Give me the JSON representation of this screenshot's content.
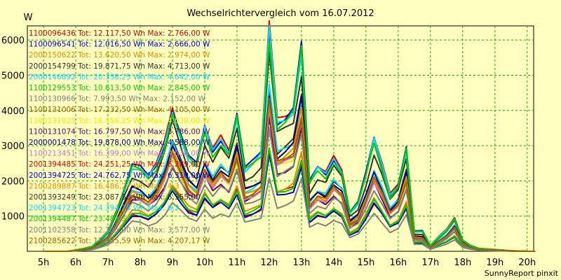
{
  "chart_data": {
    "type": "line",
    "title": "Wechselrichtervergleich vom 16.07.2012",
    "ylabel": "W",
    "xlabel": "",
    "credit": "SunnyReport pinxit",
    "grid": true,
    "legend_position": "top-left",
    "ylim": [
      0,
      6400
    ],
    "xlim": [
      4.5,
      20.2
    ],
    "y_ticks": [
      1000,
      2000,
      3000,
      4000,
      5000,
      6000
    ],
    "x_ticks": [
      5,
      6,
      7,
      8,
      9,
      10,
      11,
      12,
      13,
      14,
      15,
      16,
      17,
      18,
      19,
      20
    ],
    "x_tick_labels": [
      "5h",
      "6h",
      "7h",
      "8h",
      "9h",
      "10h",
      "11h",
      "12h",
      "13h",
      "14h",
      "15h",
      "16h",
      "17h",
      "18h",
      "19h",
      "20h"
    ],
    "x": [
      5.0,
      5.25,
      5.5,
      5.75,
      6.0,
      6.25,
      6.5,
      6.75,
      7.0,
      7.25,
      7.5,
      7.75,
      8.0,
      8.25,
      8.5,
      8.75,
      9.0,
      9.25,
      9.5,
      9.75,
      10.0,
      10.25,
      10.5,
      10.75,
      11.0,
      11.25,
      11.5,
      11.75,
      12.0,
      12.25,
      12.5,
      12.75,
      13.0,
      13.25,
      13.5,
      13.75,
      14.0,
      14.25,
      14.5,
      14.75,
      15.0,
      15.25,
      15.5,
      15.75,
      16.0,
      16.25,
      16.5,
      16.75,
      17.0,
      17.25,
      17.5,
      17.75,
      18.0,
      18.25,
      18.5,
      18.75,
      19.0,
      19.25,
      19.5,
      19.75,
      20.0,
      20.25
    ],
    "reference_profile": [
      0,
      0,
      0,
      0,
      20,
      50,
      80,
      200,
      350,
      700,
      1100,
      1500,
      1450,
      1300,
      1500,
      1900,
      2550,
      2100,
      1650,
      1500,
      2150,
      1750,
      2000,
      1800,
      2450,
      1450,
      1550,
      1700,
      3900,
      2300,
      2400,
      2550,
      3600,
      1200,
      1450,
      1350,
      1650,
      1450,
      700,
      850,
      1350,
      1950,
      1500,
      1000,
      1200,
      1850,
      350,
      350,
      100,
      250,
      380,
      600,
      200,
      100,
      50,
      40,
      30,
      20,
      10,
      5,
      0,
      0
    ],
    "series": [
      {
        "label": "1100096436 Tot: 12.117,50 Wh Max: 2.766,00 W",
        "color": "#cc0000",
        "max": 2766
      },
      {
        "label": "1100096541 Tot: 12.016,50 Wh Max: 2.666,00 W",
        "color": "#0000cc",
        "max": 2666
      },
      {
        "label": "2000150622 Tot: 13.620,50 Wh Max: 2.974,00 W",
        "color": "#e08800",
        "max": 2974
      },
      {
        "label": "2000154799 Tot: 19.871,75 Wh Max: 4.713,00 W",
        "color": "#333333",
        "max": 4713
      },
      {
        "label": "2000146892 Tot: 20.358,25 Wh Max: 4.642,00 W",
        "color": "#00d8ff",
        "max": 4642
      },
      {
        "label": "1100129553 Tot: 10.613,50 Wh Max: 2.845,00 W",
        "color": "#00cc00",
        "max": 2845
      },
      {
        "label": "1100130966 Tot: 7.993,50 Wh Max: 2.152,00 W",
        "color": "#808080",
        "max": 2152
      },
      {
        "label": "1100131006 Tot: 17.232,50 Wh Max: 4.105,00 W",
        "color": "#a06000",
        "max": 4105
      },
      {
        "label": "1100131025 Tot: 16.456,25 Wh Max: 4.038,00 W",
        "color": "#e8e800",
        "max": 4038
      },
      {
        "label": "1100131074 Tot: 16.797,50 Wh Max: 3.786,00 W",
        "color": "#660066",
        "max": 3786
      },
      {
        "label": "2000001478 Tot: 19.878,00 Wh Max: 4.588,00 W",
        "color": "#000080",
        "max": 4588
      },
      {
        "label": "1100213451 Tot: 16.399,00 Wh Max: 4.030,00 W",
        "color": "#d070d0",
        "max": 4030
      },
      {
        "label": "2001394485 Tot: 24.251,25 Wh Max: 6.289,00 W",
        "color": "#dd0000",
        "max": 6289
      },
      {
        "label": "2001394725 Tot: 24.762,75 Wh Max: 6.310,00 W",
        "color": "#0000dd",
        "max": 6310
      },
      {
        "label": "2100289887 Tot: 16.486,27 Wh Max: 4.3",
        "color": "#e08800",
        "max": 4300
      },
      {
        "label": "2001393249 Tot: 23.087,50 Wh Max: 5.555,00",
        "color": "#333333",
        "max": 5555
      },
      {
        "label": "2001394723 Tot: 24.394,75 Wh Max: 6.2",
        "color": "#00d8ff",
        "max": 6200
      },
      {
        "label": "2001394487 Tot: 23.482,5",
        "color": "#00cc00",
        "max": 6100
      },
      {
        "label": "2001102358 Tot: 12.325,00 Wh Max: 3.577,00 W",
        "color": "#808080",
        "max": 3577
      },
      {
        "label": "2100285622 Tot: 17.355,59 Wh Max: 4.207,17 W",
        "color": "#a06000",
        "max": 4207
      }
    ]
  }
}
